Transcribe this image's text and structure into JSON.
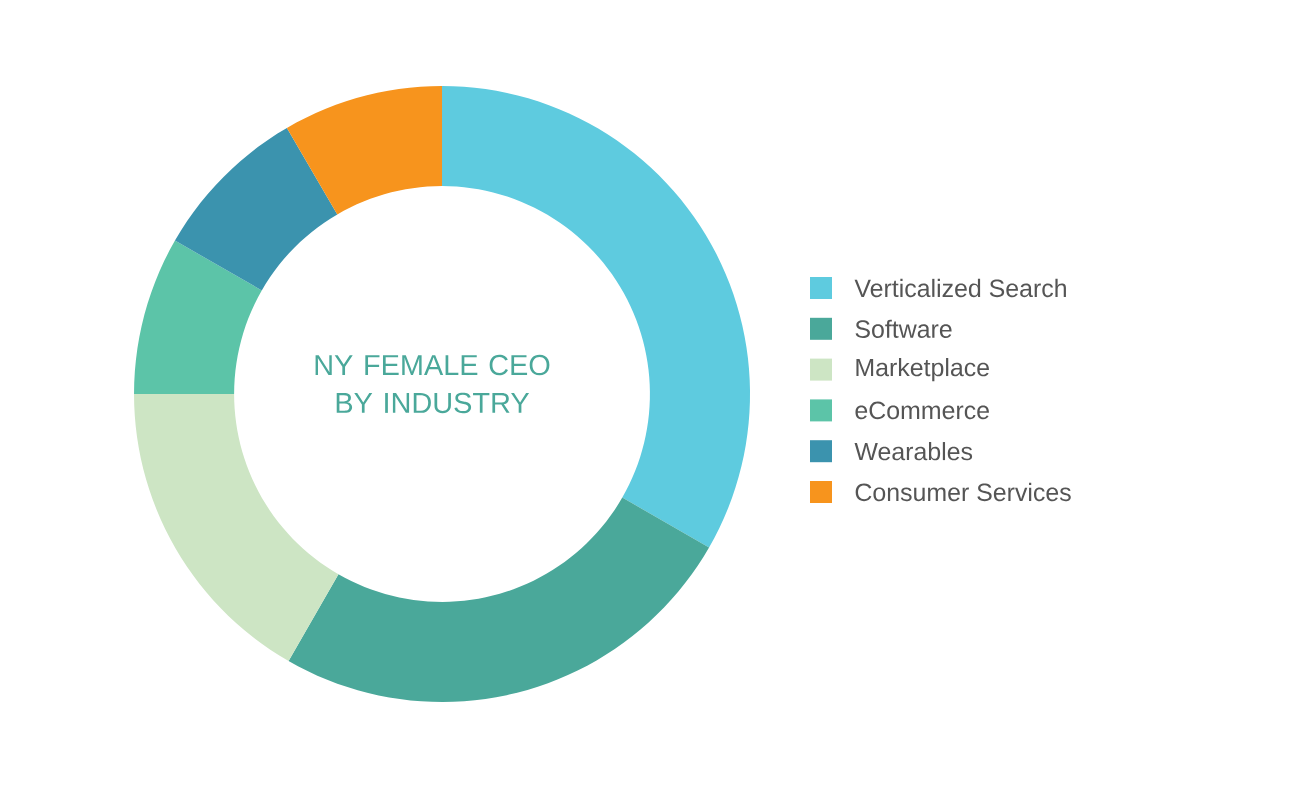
{
  "chart_data": {
    "type": "donut",
    "title": "NY FEMALE CEO BY INDUSTRY",
    "categories": [
      "Verticalized Search",
      "Software",
      "Marketplace",
      "eCommerce",
      "Wearables",
      "Consumer Services"
    ],
    "values": [
      33.3,
      25,
      16.7,
      8.3,
      8.3,
      8.4
    ],
    "colors": [
      "#5ecbdf",
      "#4aa89a",
      "#cde5c4",
      "#5cc4a8",
      "#3b93ae",
      "#f7941d"
    ],
    "legend": "right"
  }
}
